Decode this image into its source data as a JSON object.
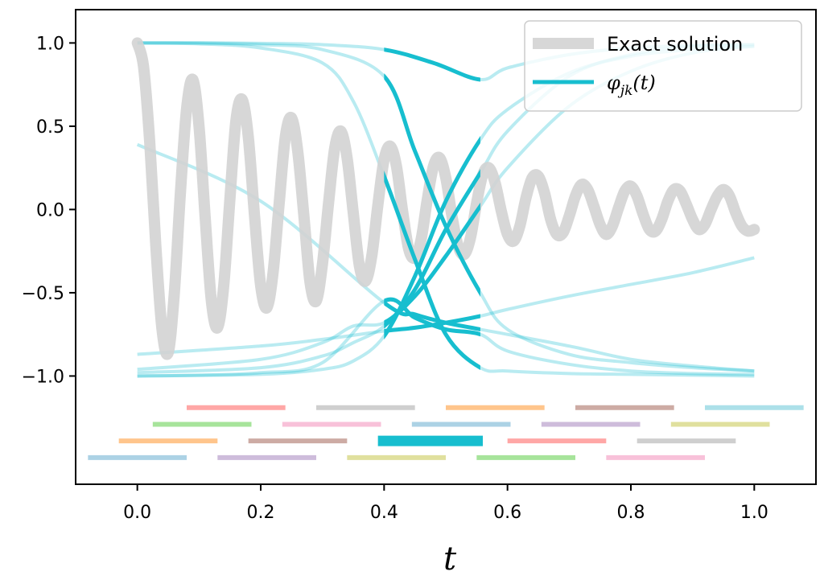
{
  "chart_data": {
    "type": "line",
    "title": "",
    "xlabel": "t",
    "ylabel": "",
    "xlim": [
      -0.1,
      1.1
    ],
    "ylim": [
      -1.65,
      1.2
    ],
    "grid": false,
    "x_ticks": [
      {
        "value": 0.0,
        "label": "0.0"
      },
      {
        "value": 0.2,
        "label": "0.2"
      },
      {
        "value": 0.4,
        "label": "0.4"
      },
      {
        "value": 0.6,
        "label": "0.6"
      },
      {
        "value": 0.8,
        "label": "0.8"
      },
      {
        "value": 1.0,
        "label": "1.0"
      }
    ],
    "y_ticks": [
      {
        "value": 1.0,
        "label": "1.0"
      },
      {
        "value": 0.5,
        "label": "0.5"
      },
      {
        "value": 0.0,
        "label": "0.0"
      },
      {
        "value": -0.5,
        "label": "−0.5"
      },
      {
        "value": -1.0,
        "label": "−1.0"
      }
    ],
    "legend": {
      "placement": "upper right",
      "entries": [
        {
          "label": "Exact solution",
          "color": "#d3d3d3"
        },
        {
          "label": "φ",
          "sub": "jk",
          "suffix": "(t)",
          "color": "#17becf"
        }
      ]
    },
    "exact_solution": {
      "name": "Exact solution",
      "color": "#d3d3d3",
      "x": [
        0.0,
        0.01,
        0.02,
        0.03,
        0.04,
        0.05,
        0.06,
        0.07,
        0.08,
        0.09,
        0.1,
        0.11,
        0.12,
        0.13,
        0.14,
        0.15,
        0.16,
        0.17,
        0.18,
        0.19,
        0.2,
        0.21,
        0.22,
        0.23,
        0.24,
        0.25,
        0.26,
        0.27,
        0.28,
        0.29,
        0.3,
        0.31,
        0.32,
        0.33,
        0.34,
        0.35,
        0.36,
        0.37,
        0.38,
        0.39,
        0.4,
        0.41,
        0.42,
        0.43,
        0.44,
        0.45,
        0.46,
        0.47,
        0.48,
        0.49,
        0.5,
        0.51,
        0.52,
        0.53,
        0.54,
        0.55,
        0.56,
        0.57,
        0.58,
        0.59,
        0.6,
        0.61,
        0.62,
        0.63,
        0.64,
        0.65,
        0.66,
        0.67,
        0.68,
        0.69,
        0.7,
        0.71,
        0.72,
        0.73,
        0.74,
        0.75,
        0.76,
        0.77,
        0.78,
        0.79,
        0.8,
        0.81,
        0.82,
        0.83,
        0.84,
        0.85,
        0.86,
        0.87,
        0.88,
        0.89,
        0.9,
        0.91,
        0.92,
        0.93,
        0.94,
        0.95,
        0.96,
        0.97,
        0.98,
        0.99,
        1.0
      ],
      "y": [
        1.0,
        0.86,
        0.41,
        -0.22,
        -0.72,
        -0.86,
        -0.5,
        0.11,
        0.61,
        0.78,
        0.5,
        -0.05,
        -0.55,
        -0.71,
        -0.46,
        0.06,
        0.54,
        0.66,
        0.43,
        -0.04,
        -0.46,
        -0.59,
        -0.38,
        0.04,
        0.44,
        0.55,
        0.35,
        -0.04,
        -0.44,
        -0.55,
        -0.33,
        0.04,
        0.37,
        0.47,
        0.31,
        -0.02,
        -0.34,
        -0.43,
        -0.28,
        0.03,
        0.3,
        0.38,
        0.26,
        -0.01,
        -0.24,
        -0.29,
        -0.18,
        0.06,
        0.26,
        0.31,
        0.19,
        -0.04,
        -0.22,
        -0.27,
        -0.17,
        0.04,
        0.21,
        0.25,
        0.16,
        -0.01,
        -0.15,
        -0.19,
        -0.1,
        0.07,
        0.19,
        0.2,
        0.1,
        -0.06,
        -0.15,
        -0.14,
        -0.04,
        0.08,
        0.15,
        0.12,
        0.02,
        -0.09,
        -0.15,
        -0.1,
        0.01,
        0.11,
        0.14,
        0.08,
        -0.03,
        -0.12,
        -0.13,
        -0.06,
        0.05,
        0.12,
        0.11,
        0.03,
        -0.06,
        -0.12,
        -0.09,
        0.0,
        0.08,
        0.12,
        0.08,
        -0.02,
        -0.1,
        -0.13,
        -0.12
      ]
    },
    "basis_functions": [
      {
        "name": "phi_1",
        "color": "#17becf",
        "x": [
          0.0,
          0.1,
          0.2,
          0.3,
          0.4,
          0.48,
          0.556,
          0.6,
          0.7,
          0.8,
          0.9,
          1.0
        ],
        "y": [
          1.0,
          1.0,
          0.998,
          0.99,
          0.96,
          0.88,
          0.78,
          0.85,
          0.93,
          0.97,
          0.985,
          0.99
        ]
      },
      {
        "name": "phi_2",
        "color": "#17becf",
        "x": [
          0.0,
          0.1,
          0.2,
          0.3,
          0.35,
          0.4,
          0.45,
          0.5,
          0.556,
          0.6,
          0.7,
          0.8,
          0.9,
          1.0
        ],
        "y": [
          1.0,
          0.995,
          0.97,
          0.88,
          0.65,
          0.2,
          -0.3,
          -0.75,
          -0.95,
          -0.97,
          -0.985,
          -0.99,
          -0.995,
          -1.0
        ]
      },
      {
        "name": "phi_3",
        "color": "#17becf",
        "x": [
          0.0,
          0.1,
          0.2,
          0.3,
          0.4,
          0.45,
          0.5,
          0.556,
          0.6,
          0.7,
          0.8,
          0.9,
          1.0
        ],
        "y": [
          1.0,
          1.0,
          0.99,
          0.96,
          0.8,
          0.35,
          -0.1,
          -0.5,
          -0.72,
          -0.87,
          -0.92,
          -0.95,
          -0.97
        ]
      },
      {
        "name": "phi_4",
        "color": "#17becf",
        "x": [
          0.0,
          0.1,
          0.2,
          0.3,
          0.4,
          0.45,
          0.5,
          0.556,
          0.6,
          0.7,
          0.8,
          0.9,
          1.0
        ],
        "y": [
          -1.0,
          -0.995,
          -0.98,
          -0.92,
          -0.55,
          -0.65,
          -0.72,
          -0.75,
          -0.85,
          -0.93,
          -0.97,
          -0.985,
          -0.99
        ]
      },
      {
        "name": "phi_5",
        "color": "#17becf",
        "x": [
          0.0,
          0.2,
          0.4,
          0.45,
          0.5,
          0.556,
          0.7,
          0.8,
          0.9,
          1.0
        ],
        "y": [
          0.39,
          0.05,
          -0.56,
          -0.63,
          -0.68,
          -0.72,
          -0.82,
          -0.9,
          -0.94,
          -0.97
        ]
      },
      {
        "name": "phi_6",
        "color": "#17becf",
        "x": [
          0.0,
          0.2,
          0.3,
          0.4,
          0.45,
          0.5,
          0.556,
          0.6,
          0.7,
          0.8,
          0.9,
          1.0
        ],
        "y": [
          -0.87,
          -0.82,
          -0.78,
          -0.73,
          -0.71,
          -0.68,
          -0.64,
          -0.6,
          -0.52,
          -0.45,
          -0.38,
          -0.29
        ]
      },
      {
        "name": "phi_7",
        "color": "#17becf",
        "x": [
          0.0,
          0.2,
          0.3,
          0.35,
          0.4,
          0.45,
          0.5,
          0.556,
          0.6,
          0.7,
          0.8,
          0.9,
          1.0
        ],
        "y": [
          -0.96,
          -0.9,
          -0.8,
          -0.7,
          -0.68,
          -0.52,
          -0.28,
          0.02,
          0.25,
          0.62,
          0.83,
          0.94,
          0.98
        ]
      },
      {
        "name": "phi_8",
        "color": "#17becf",
        "x": [
          0.0,
          0.2,
          0.3,
          0.35,
          0.4,
          0.45,
          0.5,
          0.556,
          0.6,
          0.7,
          0.8,
          0.9,
          1.0
        ],
        "y": [
          -0.98,
          -0.95,
          -0.88,
          -0.8,
          -0.7,
          -0.48,
          -0.12,
          0.22,
          0.47,
          0.8,
          0.93,
          0.98,
          0.99
        ]
      },
      {
        "name": "phi_9",
        "color": "#17becf",
        "x": [
          0.0,
          0.2,
          0.3,
          0.35,
          0.4,
          0.45,
          0.5,
          0.556,
          0.6,
          0.7,
          0.8,
          0.9,
          1.0
        ],
        "y": [
          -1.0,
          -0.99,
          -0.96,
          -0.91,
          -0.76,
          -0.4,
          0.05,
          0.42,
          0.6,
          0.82,
          0.92,
          0.96,
          0.98
        ]
      }
    ],
    "highlight_interval": [
      0.4,
      0.556
    ],
    "partition_rows": [
      [
        {
          "start": 0.08,
          "end": 0.24,
          "color": "#ff9896"
        },
        {
          "start": 0.29,
          "end": 0.45,
          "color": "#c7c7c7"
        },
        {
          "start": 0.5,
          "end": 0.66,
          "color": "#ffbb78"
        },
        {
          "start": 0.71,
          "end": 0.87,
          "color": "#c49c94"
        },
        {
          "start": 0.92,
          "end": 1.08,
          "color": "#9edae5"
        }
      ],
      [
        {
          "start": 0.025,
          "end": 0.185,
          "color": "#98df8a"
        },
        {
          "start": 0.235,
          "end": 0.395,
          "color": "#f7b6d2"
        },
        {
          "start": 0.445,
          "end": 0.605,
          "color": "#9ecae1"
        },
        {
          "start": 0.655,
          "end": 0.815,
          "color": "#c5b0d5"
        },
        {
          "start": 0.865,
          "end": 1.025,
          "color": "#dbdb8d"
        }
      ],
      [
        {
          "start": -0.03,
          "end": 0.13,
          "color": "#ffbb78"
        },
        {
          "start": 0.18,
          "end": 0.34,
          "color": "#c49c94"
        },
        {
          "start": 0.39,
          "end": 0.56,
          "color": "#17becf",
          "highlight": true
        },
        {
          "start": 0.6,
          "end": 0.76,
          "color": "#ff9896"
        },
        {
          "start": 0.81,
          "end": 0.97,
          "color": "#c7c7c7"
        }
      ],
      [
        {
          "start": -0.08,
          "end": 0.08,
          "color": "#9ecae1"
        },
        {
          "start": 0.13,
          "end": 0.29,
          "color": "#c5b0d5"
        },
        {
          "start": 0.34,
          "end": 0.5,
          "color": "#dbdb8d"
        },
        {
          "start": 0.55,
          "end": 0.71,
          "color": "#98df8a"
        },
        {
          "start": 0.76,
          "end": 0.92,
          "color": "#f7b6d2"
        }
      ]
    ]
  }
}
